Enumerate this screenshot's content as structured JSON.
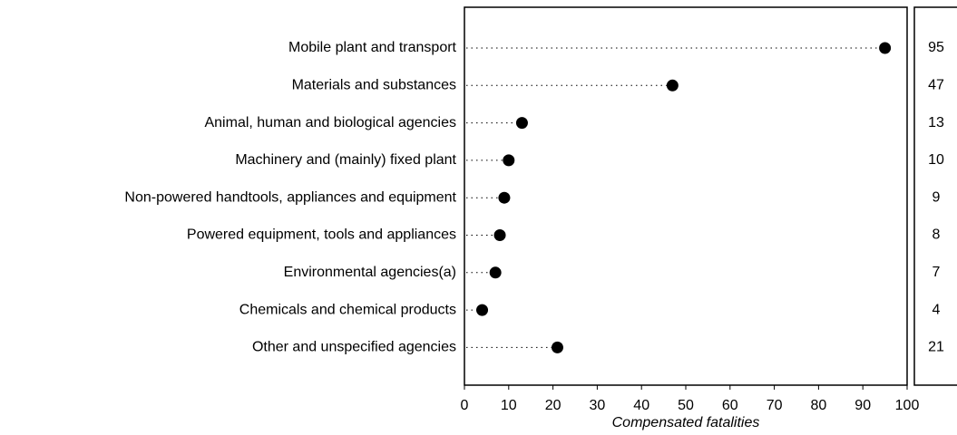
{
  "chart_data": {
    "type": "dot",
    "categories": [
      "Mobile plant and transport",
      "Materials and substances",
      "Animal, human and biological agencies",
      "Machinery and (mainly) fixed plant",
      "Non-powered handtools, appliances and equipment",
      "Powered equipment, tools and appliances",
      "Environmental agencies(a)",
      "Chemicals and chemical products",
      "Other and unspecified agencies"
    ],
    "values": [
      95,
      47,
      13,
      10,
      9,
      8,
      7,
      4,
      21
    ],
    "color": "#000000",
    "xlabel": "Compensated fatalities",
    "xlim": [
      0,
      100
    ],
    "xticks": [
      0,
      10,
      20,
      30,
      40,
      50,
      60,
      70,
      80,
      90,
      100
    ]
  }
}
